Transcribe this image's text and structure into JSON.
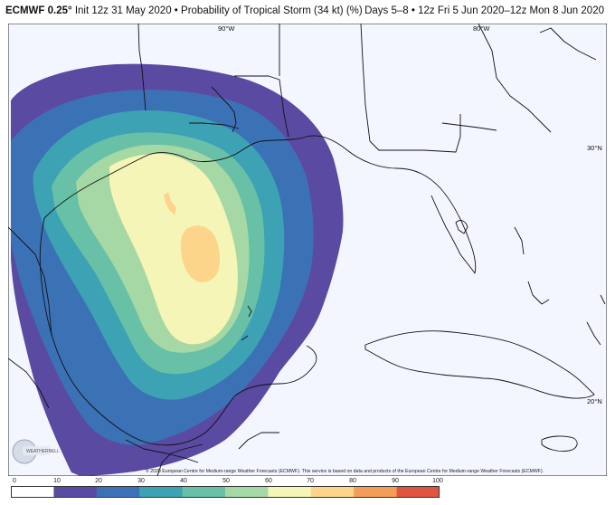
{
  "header": {
    "model": "ECMWF 0.25°",
    "init": "Init 12z 31 May 2020",
    "product": "Probability of Tropical Storm (34 kt) (%)",
    "days": "Days 5–8",
    "valid": "12z Fri 5 Jun 2020–12z Mon 8 Jun 2020"
  },
  "map": {
    "lon_labels": [
      "90°W",
      "80°W"
    ],
    "lat_labels": [
      "30°N",
      "20°N"
    ],
    "logo_text": "WEATHERBELL",
    "credit": "© 2020 European Centre for Medium-range Weather Forecasts (ECMWF). This service is based on data and products of the European Centre for Medium-range Weather Forecasts (ECMWF)."
  },
  "legend": {
    "ticks": [
      "0",
      "10",
      "20",
      "30",
      "40",
      "50",
      "60",
      "70",
      "80",
      "90",
      "100"
    ],
    "colors": [
      "#ffffff",
      "#5b4aa2",
      "#3b72b6",
      "#3ea2b5",
      "#68c1a6",
      "#a6d8a6",
      "#f5f5b7",
      "#fdd58a",
      "#f29e58",
      "#e0553f",
      "#9e0142"
    ]
  }
}
